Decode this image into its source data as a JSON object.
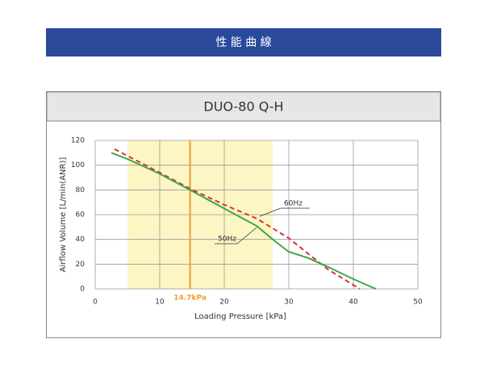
{
  "header": {
    "title": "性 能 曲 線"
  },
  "chart_data": {
    "type": "line",
    "title": "DUO-80 Q-H",
    "xlabel": "Loading Pressure [kPa]",
    "ylabel": "Airflow Volume [L/min(ANR)]",
    "xlim": [
      0,
      50
    ],
    "xticks": [
      0,
      10,
      20,
      30,
      40,
      50
    ],
    "ylim": [
      0,
      120
    ],
    "yticks": [
      0,
      20,
      40,
      60,
      80,
      100,
      120
    ],
    "grid": true,
    "highlight_range": [
      5,
      27.5
    ],
    "highlight_color": "#fbf6c4",
    "marker": {
      "value": 14.7,
      "label": "14.7kPa",
      "color": "#f0a030"
    },
    "series": [
      {
        "name": "60Hz",
        "color": "#e03030",
        "dashed": true,
        "x": [
          3,
          10,
          14.7,
          20,
          25,
          30,
          36,
          41
        ],
        "values": [
          113,
          94,
          81,
          68,
          57,
          41,
          16,
          0
        ]
      },
      {
        "name": "50Hz",
        "color": "#3aa84a",
        "dashed": false,
        "x": [
          2.5,
          5,
          10,
          14.7,
          20,
          25,
          28,
          30,
          33,
          36,
          40,
          43.5
        ],
        "values": [
          110,
          105,
          93,
          80,
          65,
          51,
          38,
          30,
          25,
          18,
          8,
          0
        ]
      }
    ]
  }
}
